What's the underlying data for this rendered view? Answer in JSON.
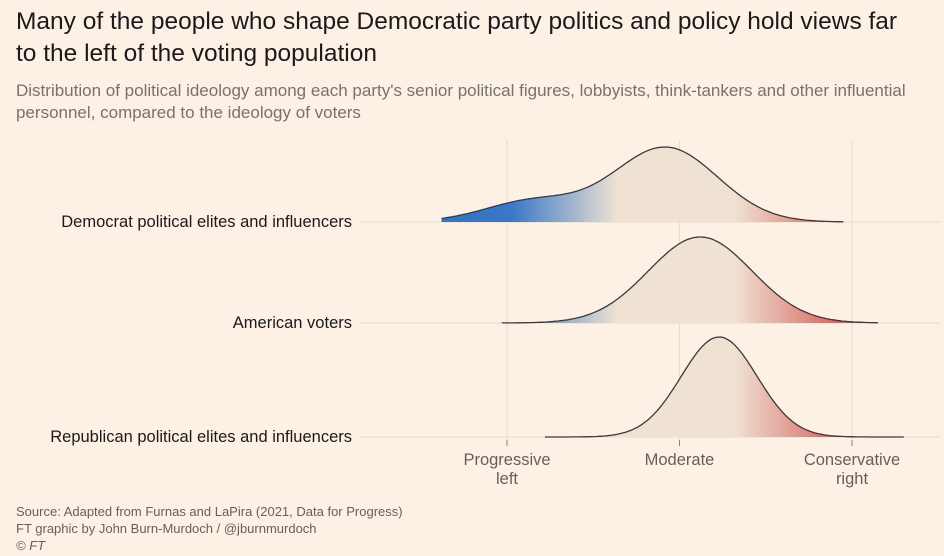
{
  "title": "Many of the people who shape Democratic party politics and policy hold views far to the left of the voting population",
  "subtitle": "Distribution of political ideology among each party's senior political figures, lobbyists, think-tankers and other influential personnel, compared to the ideology of voters",
  "footer": {
    "source": "Source: Adapted from Furnas and LaPira (2021, Data for Progress)",
    "credit": "FT graphic by John Burn-Murdoch / @jburnmurdoch",
    "copyright": "© FT"
  },
  "colors": {
    "background": "#fdf1e5",
    "left": "#3a78c6",
    "moderate": "#efe2d2",
    "right": "#cc2427",
    "outline": "#3a3a3a",
    "grid": "#e8dccd"
  },
  "chart_data": {
    "type": "area",
    "subtype": "ridgeline density",
    "xlabel": "",
    "ylabel": "",
    "x_axis_ticks": [
      {
        "value": -1,
        "label": [
          "Progressive",
          "left"
        ]
      },
      {
        "value": 0,
        "label": [
          "Moderate"
        ]
      },
      {
        "value": 1,
        "label": [
          "Conservative",
          "right"
        ]
      }
    ],
    "xlim": [
      -1.38,
      1.3
    ],
    "grid": true,
    "series": [
      {
        "name": "Democrat political elites and influencers",
        "components": [
          {
            "weight": 0.78,
            "mean": -0.08,
            "sd": 0.3
          },
          {
            "weight": 0.22,
            "mean": -0.85,
            "sd": 0.28
          }
        ],
        "range": [
          -1.38,
          -1.38,
          0.95
        ]
      },
      {
        "name": "American voters",
        "components": [
          {
            "weight": 1.0,
            "mean": 0.12,
            "sd": 0.3
          }
        ],
        "range": [
          -1.38,
          -1.03,
          1.15
        ]
      },
      {
        "name": "Republican political elites and influencers",
        "components": [
          {
            "weight": 1.0,
            "mean": 0.23,
            "sd": 0.22
          }
        ],
        "range": [
          -1.38,
          -0.78,
          1.3
        ]
      }
    ]
  }
}
